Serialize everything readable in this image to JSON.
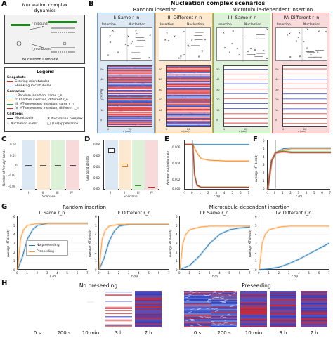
{
  "panelA": {
    "label": "A",
    "title_line1": "Nucleation complex",
    "title_line2": "dynamics",
    "r_bound": "r_n,bound",
    "r_unbound": "r_n,unbound",
    "caption": "Nucleation Complex"
  },
  "legend": {
    "title": "Legend",
    "snapshots_header": "Snapshots",
    "growing": "Growing microtubules",
    "shrinking": "Shrinking microtubules",
    "scenarios_header": "Scenarios",
    "s1": "I: Random insertion, same r_n",
    "s2": "II: Random insertion, different r_n",
    "s3": "III: MT-dependent insertion, same r_n",
    "s4": "IV: MT-dependent insertion, different r_n",
    "cartoons_header": "Cartoons",
    "microtubule": "Microtubule",
    "nucleation_complex": "Nucleation complex",
    "nucleation_event": "Nucleation event",
    "disappearance": "(Dis)appearance",
    "colors": {
      "growing": "#d62728",
      "shrinking": "#1f3fbf",
      "s1": "#1f77b4",
      "s2": "#ff7f0e",
      "s3": "#2ca02c",
      "s4": "#d62728"
    }
  },
  "panelB": {
    "label": "B",
    "title": "Nucleation complex scenarios",
    "group_random": "Random insertion",
    "group_mt": "Microtubule-dependent insertion",
    "scenarios": [
      {
        "title": "I: Same r_n",
        "bg": "#dce9f5",
        "border": "#6a9cc9"
      },
      {
        "title": "II: Different r_n",
        "bg": "#fde8d2",
        "border": "#f0a050"
      },
      {
        "title": "III: Same r_n",
        "bg": "#ddf0d8",
        "border": "#6cbf5a"
      },
      {
        "title": "IV: Different r_n",
        "bg": "#f9dada",
        "border": "#e06666"
      }
    ],
    "insertion": "Insertion",
    "nucleation": "Nucleation",
    "ylabel": "y (μm)",
    "xlabel": "x (μm)",
    "yticks": [
      "0",
      "10",
      "20",
      "30",
      "40",
      "50"
    ],
    "xticks": [
      "0",
      "20"
    ]
  },
  "panelC": {
    "label": "C",
    "ylabel": "Number of \"empty\" bands",
    "xlabel": "Scenario",
    "yticks": [
      "0.04",
      "0.02",
      "0",
      "-0.02",
      "-0.04"
    ],
    "xticks": [
      "I",
      "II",
      "III",
      "IV"
    ]
  },
  "panelD": {
    "label": "D",
    "ylabel": "Gap band density",
    "xlabel": "Scenario",
    "yticks": [
      "0.08",
      "0.06",
      "0.04",
      "0.02",
      "0.00"
    ],
    "xticks": [
      "I",
      "II",
      "III",
      "IV"
    ]
  },
  "panelE": {
    "label": "E",
    "ylabel": "Average nucleation rate",
    "xlabel": "t (h)",
    "yticks": [
      "0.006",
      "0.004",
      "0.002",
      "0.000"
    ],
    "xticks": [
      "-1",
      "0",
      "1",
      "2",
      "3",
      "4",
      "5",
      "6",
      "7"
    ]
  },
  "panelF": {
    "label": "F",
    "ylabel": "Average MT density",
    "xlabel": "t (h)",
    "yticks": [
      "6",
      "5",
      "4",
      "3",
      "2",
      "1",
      "0"
    ],
    "xticks": [
      "-1",
      "0",
      "1",
      "2",
      "3",
      "4",
      "5",
      "6",
      "7"
    ]
  },
  "panelG": {
    "label": "G",
    "group_random": "Random insertion",
    "group_mt": "Microtubule-dependent insertion",
    "titles": [
      "I: Same r_n",
      "II: Different r_n",
      "III: Same r_n",
      "IV: Different r_n"
    ],
    "ylabel": "Average MT density",
    "xlabel": "t (h)",
    "yticks": [
      "6",
      "5",
      "4",
      "3",
      "2",
      "1",
      "0"
    ],
    "xticks": [
      "0",
      "1",
      "2",
      "3",
      "4",
      "5",
      "6",
      "7"
    ],
    "legend_no": "No preseeding",
    "legend_pre": "Preseeding",
    "colors": {
      "no": "#1f77b4",
      "pre": "#ff9933"
    }
  },
  "panelH": {
    "label": "H",
    "title_no": "No preseeding",
    "title_pre": "Preseeding",
    "times_no": [
      "0 s",
      "200 s",
      "10 min",
      "3 h",
      "7 h"
    ],
    "times_pre": [
      "0 s",
      "200 s",
      "10 min",
      "3 h",
      "7 h"
    ]
  },
  "chart_data": [
    {
      "type": "line",
      "panel": "E",
      "xlabel": "t (h)",
      "ylabel": "Average nucleation rate",
      "xlim": [
        -1,
        7
      ],
      "ylim": [
        0,
        0.006
      ],
      "series": [
        {
          "name": "I",
          "x": [
            -1,
            0,
            1,
            2,
            4,
            7
          ],
          "y": [
            0.0055,
            0.0055,
            0.0055,
            0.0055,
            0.0055,
            0.0055
          ]
        },
        {
          "name": "II",
          "x": [
            -1,
            0,
            0.5,
            1,
            2,
            4,
            7
          ],
          "y": [
            0.0055,
            0.0055,
            0.0045,
            0.0038,
            0.0036,
            0.0035,
            0.0035
          ]
        },
        {
          "name": "III",
          "x": [
            -1,
            0,
            0.2,
            0.5,
            1,
            7
          ],
          "y": [
            0.0055,
            0.0055,
            0.002,
            0.0006,
            0.0003,
            0.0003
          ]
        },
        {
          "name": "IV",
          "x": [
            -1,
            0,
            0.2,
            0.5,
            1,
            7
          ],
          "y": [
            0.0055,
            0.0055,
            0.0018,
            0.0005,
            0.0003,
            0.0003
          ]
        }
      ]
    },
    {
      "type": "line",
      "panel": "F",
      "xlabel": "t (h)",
      "ylabel": "Average MT density",
      "xlim": [
        -1,
        7
      ],
      "ylim": [
        0,
        6
      ],
      "series": [
        {
          "name": "I",
          "x": [
            -1,
            -0.5,
            0,
            1,
            2,
            3,
            4,
            7
          ],
          "y": [
            0,
            3.5,
            4.5,
            5.0,
            5.1,
            5.1,
            5.1,
            5.1
          ]
        },
        {
          "name": "II",
          "x": [
            -1,
            -0.5,
            0,
            1,
            2,
            3,
            4,
            7
          ],
          "y": [
            0,
            3.5,
            4.5,
            4.8,
            5.0,
            5.0,
            5.0,
            5.0
          ]
        },
        {
          "name": "III",
          "x": [
            -1,
            -0.5,
            0,
            1,
            2,
            3,
            4,
            7
          ],
          "y": [
            0,
            3.5,
            4.5,
            4.7,
            4.6,
            4.6,
            4.6,
            4.6
          ]
        },
        {
          "name": "IV",
          "x": [
            -1,
            -0.5,
            0,
            1,
            2,
            3,
            4,
            7
          ],
          "y": [
            0,
            3.5,
            4.5,
            4.6,
            4.5,
            4.5,
            4.5,
            4.5
          ]
        }
      ]
    },
    {
      "type": "line",
      "panel": "G-I",
      "xlabel": "t (h)",
      "ylabel": "Average MT density",
      "xlim": [
        0,
        7
      ],
      "ylim": [
        0,
        6
      ],
      "series": [
        {
          "name": "No preseeding",
          "x": [
            0,
            0.5,
            1,
            1.5,
            2,
            3,
            4,
            7
          ],
          "y": [
            0,
            1.5,
            3.5,
            4.5,
            5.0,
            5.2,
            5.2,
            5.2
          ]
        },
        {
          "name": "Preseeding",
          "x": [
            0,
            0.3,
            0.6,
            1,
            2,
            3,
            7
          ],
          "y": [
            0,
            3.5,
            4.5,
            5.0,
            5.2,
            5.2,
            5.2
          ]
        }
      ]
    },
    {
      "type": "line",
      "panel": "G-II",
      "xlabel": "t (h)",
      "ylabel": "Average MT density",
      "xlim": [
        0,
        7
      ],
      "ylim": [
        0,
        6
      ],
      "series": [
        {
          "name": "No preseeding",
          "x": [
            0,
            0.5,
            1,
            1.5,
            2,
            3,
            4,
            7
          ],
          "y": [
            0,
            1.3,
            3.2,
            4.3,
            4.9,
            5.1,
            5.1,
            5.1
          ]
        },
        {
          "name": "Preseeding",
          "x": [
            0,
            0.3,
            0.6,
            1,
            2,
            3,
            7
          ],
          "y": [
            0,
            3.4,
            4.4,
            4.9,
            5.1,
            5.1,
            5.1
          ]
        }
      ]
    },
    {
      "type": "line",
      "panel": "G-III",
      "xlabel": "t (h)",
      "ylabel": "Average MT density",
      "xlim": [
        0,
        7
      ],
      "ylim": [
        0,
        6
      ],
      "series": [
        {
          "name": "No preseeding",
          "x": [
            0,
            1,
            2,
            3,
            4,
            5,
            6,
            7
          ],
          "y": [
            0,
            0.5,
            1.6,
            3.0,
            4.0,
            4.5,
            4.7,
            4.8
          ]
        },
        {
          "name": "Preseeding",
          "x": [
            0,
            0.3,
            0.6,
            1,
            2,
            3,
            7
          ],
          "y": [
            0,
            3.0,
            4.0,
            4.5,
            4.8,
            4.9,
            4.9
          ]
        }
      ]
    },
    {
      "type": "line",
      "panel": "G-IV",
      "xlabel": "t (h)",
      "ylabel": "Average MT density",
      "xlim": [
        0,
        7
      ],
      "ylim": [
        0,
        6
      ],
      "series": [
        {
          "name": "No preseeding",
          "x": [
            0,
            1,
            2,
            3,
            4,
            5,
            6,
            7
          ],
          "y": [
            0,
            0.1,
            0.3,
            0.7,
            1.2,
            1.8,
            2.4,
            3.0
          ]
        },
        {
          "name": "Preseeding",
          "x": [
            0,
            0.3,
            0.6,
            1,
            2,
            3,
            7
          ],
          "y": [
            0,
            3.0,
            4.0,
            4.5,
            4.8,
            4.9,
            4.9
          ]
        }
      ]
    }
  ]
}
